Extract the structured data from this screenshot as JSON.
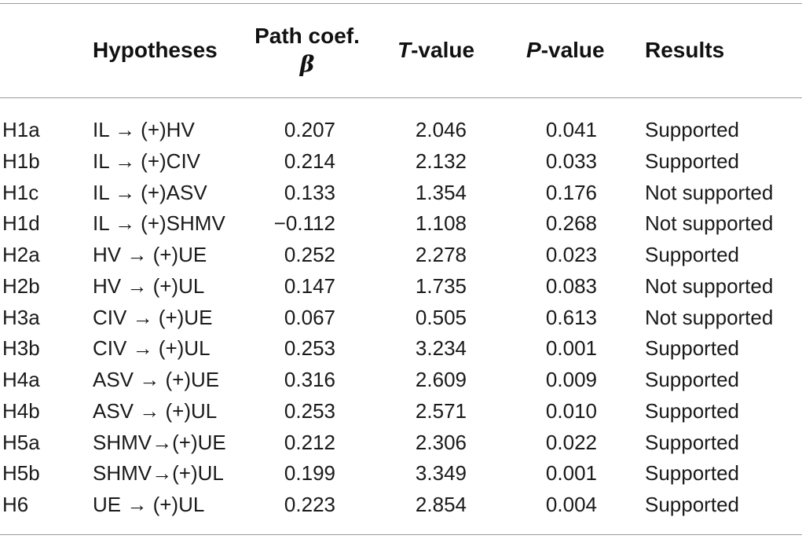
{
  "table": {
    "headers": {
      "hypotheses": "Hypotheses",
      "path_line1": "Path coef.",
      "path_line2": "β",
      "t_italic": "T",
      "t_rest": "-value",
      "p_italic": "P",
      "p_rest": "-value",
      "results": "Results"
    },
    "rows": [
      {
        "id": "H1a",
        "hypothesis": "IL → (+)HV",
        "path": "0.207",
        "t": "2.046",
        "p": "0.041",
        "result": "Supported"
      },
      {
        "id": "H1b",
        "hypothesis": "IL → (+)CIV",
        "path": "0.214",
        "t": "2.132",
        "p": "0.033",
        "result": "Supported"
      },
      {
        "id": "H1c",
        "hypothesis": "IL → (+)ASV",
        "path": "0.133",
        "t": "1.354",
        "p": "0.176",
        "result": "Not supported"
      },
      {
        "id": "H1d",
        "hypothesis": "IL → (+)SHMV",
        "path": "−0.112",
        "t": "1.108",
        "p": "0.268",
        "result": "Not supported"
      },
      {
        "id": "H2a",
        "hypothesis": "HV → (+)UE",
        "path": "0.252",
        "t": "2.278",
        "p": "0.023",
        "result": "Supported"
      },
      {
        "id": "H2b",
        "hypothesis": "HV → (+)UL",
        "path": "0.147",
        "t": "1.735",
        "p": "0.083",
        "result": "Not supported"
      },
      {
        "id": "H3a",
        "hypothesis": "CIV → (+)UE",
        "path": "0.067",
        "t": "0.505",
        "p": "0.613",
        "result": "Not supported"
      },
      {
        "id": "H3b",
        "hypothesis": "CIV → (+)UL",
        "path": "0.253",
        "t": "3.234",
        "p": "0.001",
        "result": "Supported"
      },
      {
        "id": "H4a",
        "hypothesis": "ASV → (+)UE",
        "path": "0.316",
        "t": "2.609",
        "p": "0.009",
        "result": "Supported"
      },
      {
        "id": "H4b",
        "hypothesis": "ASV → (+)UL",
        "path": "0.253",
        "t": "2.571",
        "p": "0.010",
        "result": "Supported"
      },
      {
        "id": "H5a",
        "hypothesis": "SHMV→(+)UE",
        "path": "0.212",
        "t": "2.306",
        "p": "0.022",
        "result": "Supported"
      },
      {
        "id": "H5b",
        "hypothesis": "SHMV→(+)UL",
        "path": "0.199",
        "t": "3.349",
        "p": "0.001",
        "result": "Supported"
      },
      {
        "id": "H6",
        "hypothesis": "UE → (+)UL",
        "path": "0.223",
        "t": "2.854",
        "p": "0.004",
        "result": "Supported"
      }
    ]
  }
}
